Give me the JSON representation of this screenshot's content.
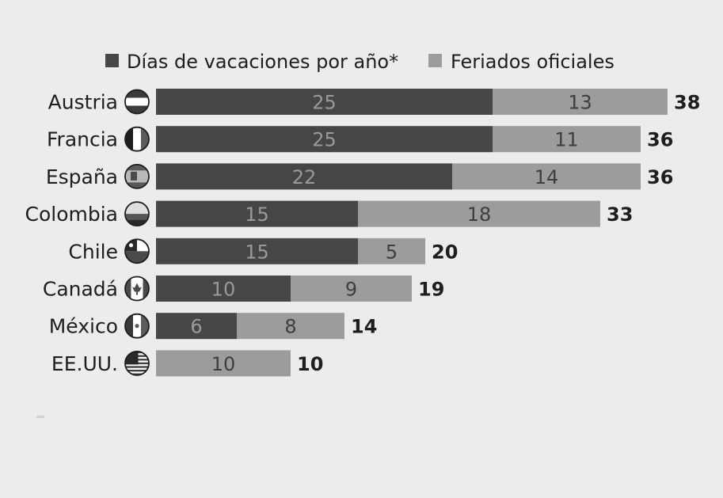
{
  "chart_data": {
    "type": "bar",
    "orientation": "horizontal",
    "stacked": true,
    "categories": [
      "Austria",
      "Francia",
      "España",
      "Colombia",
      "Chile",
      "Canadá",
      "México",
      "EE.UU."
    ],
    "series": [
      {
        "name": "Días de vacaciones por año*",
        "values": [
          25,
          25,
          22,
          15,
          15,
          10,
          6,
          0
        ],
        "color": "#464646"
      },
      {
        "name": "Feriados oficiales",
        "values": [
          13,
          11,
          14,
          18,
          5,
          9,
          8,
          10
        ],
        "color": "#9c9c9c"
      }
    ],
    "totals": [
      38,
      36,
      36,
      33,
      20,
      19,
      14,
      10
    ],
    "flag_icons": [
      "austria-flag-icon",
      "france-flag-icon",
      "spain-flag-icon",
      "colombia-flag-icon",
      "chile-flag-icon",
      "canada-flag-icon",
      "mexico-flag-icon",
      "usa-flag-icon"
    ],
    "legend_position": "top",
    "grid": false,
    "xlim": [
      0,
      38
    ]
  },
  "colors": {
    "background": "#ececec",
    "dark_series": "#464646",
    "light_series": "#9c9c9c",
    "dark_label": "#9a9a9a",
    "light_label": "#3e3e3e",
    "text": "#1e1e1e"
  }
}
